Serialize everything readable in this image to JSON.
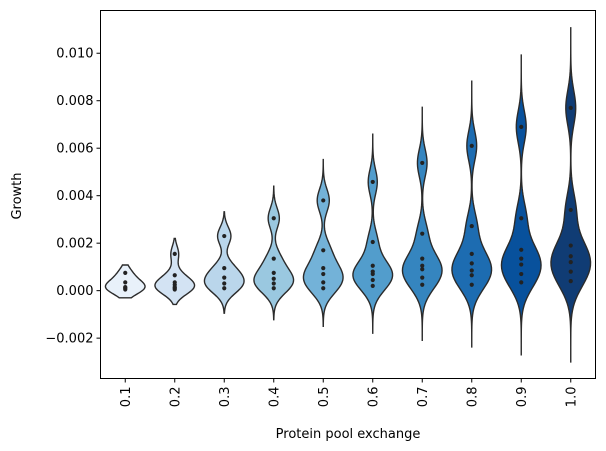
{
  "chart_data": {
    "type": "violin",
    "xlabel": "Protein pool exchange",
    "ylabel": "Growth",
    "ylim": [
      -0.0037,
      0.0118
    ],
    "grid": false,
    "yticks": [
      {
        "value": -0.002,
        "label": "−0.002"
      },
      {
        "value": 0.0,
        "label": "0.000"
      },
      {
        "value": 0.002,
        "label": "0.002"
      },
      {
        "value": 0.004,
        "label": "0.004"
      },
      {
        "value": 0.006,
        "label": "0.006"
      },
      {
        "value": 0.008,
        "label": "0.008"
      },
      {
        "value": 0.01,
        "label": "0.010"
      }
    ],
    "categories": [
      "0.1",
      "0.2",
      "0.3",
      "0.4",
      "0.5",
      "0.6",
      "0.7",
      "0.8",
      "0.9",
      "1.0"
    ],
    "colors": [
      "#e8f1fa",
      "#d3e3f3",
      "#bad6eb",
      "#9ac8e0",
      "#73b2d8",
      "#529dcc",
      "#3585bf",
      "#1d6cb1",
      "#08519c",
      "#103c74"
    ],
    "violins": [
      {
        "min": -0.0003,
        "max": 0.00108,
        "points": [
          0.00075,
          0.00035,
          0.00015,
          5e-05,
          0.0001
        ]
      },
      {
        "min": -0.00058,
        "max": 0.0022,
        "points": [
          0.00155,
          0.00065,
          0.00035,
          0.00025,
          0.00015,
          5e-05,
          0.0001
        ]
      },
      {
        "min": -0.00095,
        "max": 0.00332,
        "points": [
          0.0023,
          0.00095,
          0.00055,
          0.0003,
          0.0001
        ]
      },
      {
        "min": -0.00122,
        "max": 0.0044,
        "points": [
          0.00305,
          0.00135,
          0.00075,
          0.0005,
          0.0003,
          0.0001
        ]
      },
      {
        "min": -0.0015,
        "max": 0.00552,
        "points": [
          0.0038,
          0.0017,
          0.00095,
          0.0007,
          0.00035,
          0.0001
        ]
      },
      {
        "min": -0.00182,
        "max": 0.00662,
        "points": [
          0.00458,
          0.00205,
          0.00105,
          0.0008,
          0.0007,
          0.00045,
          0.0002
        ]
      },
      {
        "min": -0.00212,
        "max": 0.00775,
        "points": [
          0.00538,
          0.0024,
          0.00135,
          0.0009,
          0.00105,
          0.00055,
          0.00025
        ]
      },
      {
        "min": -0.0024,
        "max": 0.00885,
        "points": [
          0.0061,
          0.00272,
          0.00155,
          0.00115,
          0.00085,
          0.00065,
          0.00025
        ]
      },
      {
        "min": -0.00273,
        "max": 0.00995,
        "points": [
          0.0069,
          0.00305,
          0.00172,
          0.00135,
          0.0011,
          0.0007,
          0.00035
        ]
      },
      {
        "min": -0.00303,
        "max": 0.0111,
        "points": [
          0.0077,
          0.0034,
          0.0019,
          0.00145,
          0.0012,
          0.0008,
          0.0004
        ]
      }
    ]
  }
}
